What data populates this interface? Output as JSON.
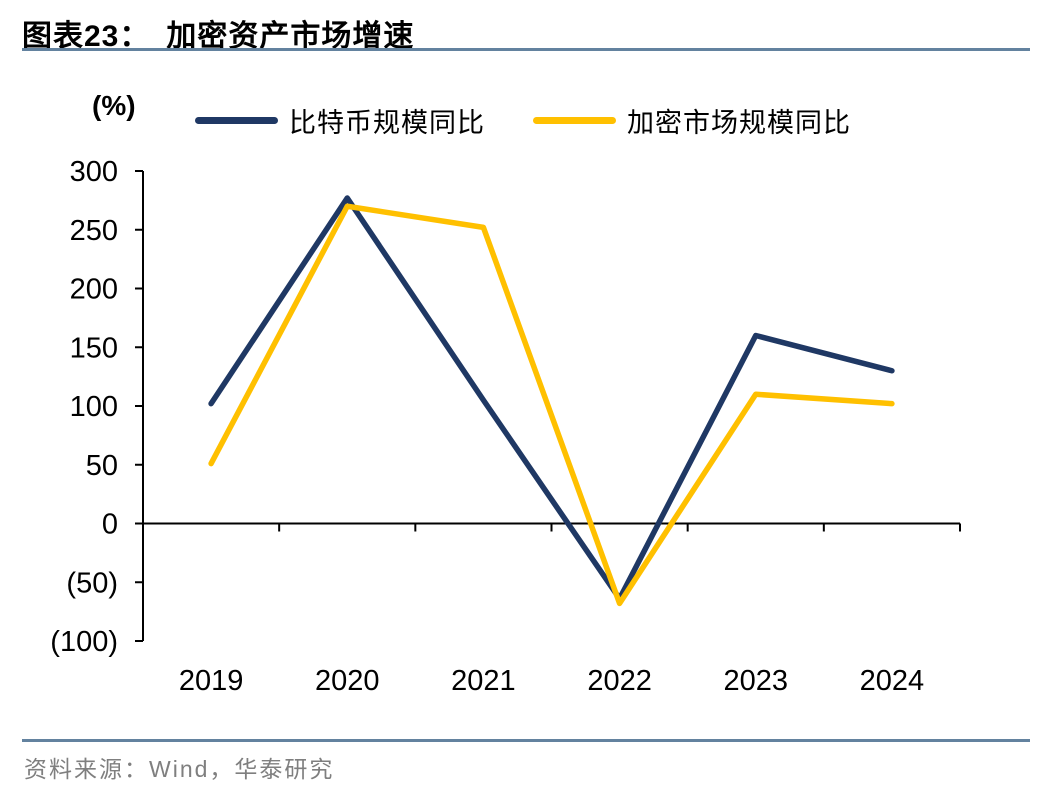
{
  "header": {
    "figure_label": "图表23：",
    "title": "加密资产市场增速"
  },
  "footer": {
    "source": "资料来源：Wind，华泰研究"
  },
  "colors": {
    "accent_rule": "#63829F",
    "axis": "#000000",
    "source_text": "#7F7F7F",
    "bitcoin_line": "#1F3864",
    "crypto_market_line": "#FFC000"
  },
  "chart_data": {
    "type": "line",
    "title": "加密资产市场增速",
    "unit_label": "(%)",
    "categories": [
      "2019",
      "2020",
      "2021",
      "2022",
      "2023",
      "2024"
    ],
    "series": [
      {
        "name": "比特币规模同比",
        "color": "#1F3864",
        "values": [
          102,
          277,
          105,
          -64,
          160,
          130
        ]
      },
      {
        "name": "加密市场规模同比",
        "color": "#FFC000",
        "values": [
          51,
          270,
          252,
          -68,
          110,
          102
        ]
      }
    ],
    "ylim": [
      -100,
      300
    ],
    "ytick_step": 50,
    "ytick_labels": [
      "300",
      "250",
      "200",
      "150",
      "100",
      "50",
      "0",
      "(50)",
      "(100)"
    ],
    "grid": false,
    "legend_position": "top"
  }
}
